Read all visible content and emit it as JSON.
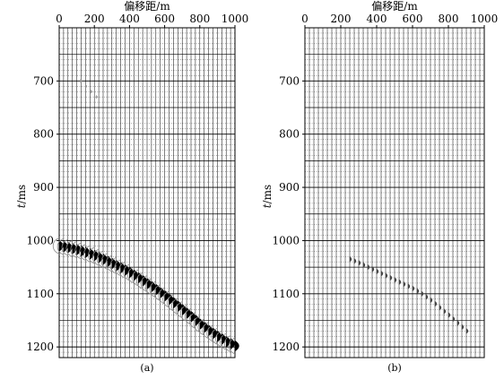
{
  "chart_data": [
    {
      "type": "seismic-wiggle",
      "panel_label": "(a)",
      "xlabel": "偏移距/m",
      "ylabel_italic": "t",
      "ylabel_unit": "/ms",
      "xlim": [
        0,
        1000
      ],
      "ylim": [
        600,
        1220
      ],
      "x_ticks": [
        0,
        200,
        400,
        600,
        800,
        1000
      ],
      "y_ticks": [
        700,
        800,
        900,
        1000,
        1100,
        1200
      ],
      "grid": true,
      "faint_event": {
        "x": [
          120,
          150,
          180,
          210
        ],
        "t": [
          700,
          710,
          720,
          730
        ]
      },
      "event": {
        "x": [
          0,
          50,
          100,
          150,
          200,
          250,
          300,
          350,
          400,
          450,
          500,
          550,
          600,
          650,
          700,
          750,
          800,
          850,
          900,
          950,
          1000
        ],
        "t": [
          1010,
          1013,
          1017,
          1022,
          1028,
          1035,
          1043,
          1051,
          1060,
          1070,
          1081,
          1092,
          1104,
          1117,
          1130,
          1143,
          1157,
          1169,
          1180,
          1190,
          1198
        ]
      }
    },
    {
      "type": "seismic-wiggle",
      "panel_label": "(b)",
      "xlabel": "偏移距/m",
      "ylabel_italic": "t",
      "ylabel_unit": "/ms",
      "xlim": [
        0,
        1000
      ],
      "ylim": [
        600,
        1220
      ],
      "x_ticks": [
        0,
        200,
        400,
        600,
        800,
        1000
      ],
      "y_ticks": [
        700,
        800,
        900,
        1000,
        1100,
        1200
      ],
      "grid": true,
      "event": {
        "x": [
          250,
          300,
          350,
          400,
          450,
          500,
          550,
          600,
          650,
          700,
          750,
          800,
          850,
          900
        ],
        "t": [
          1035,
          1042,
          1050,
          1058,
          1066,
          1074,
          1082,
          1090,
          1100,
          1112,
          1126,
          1140,
          1155,
          1170
        ]
      }
    }
  ]
}
